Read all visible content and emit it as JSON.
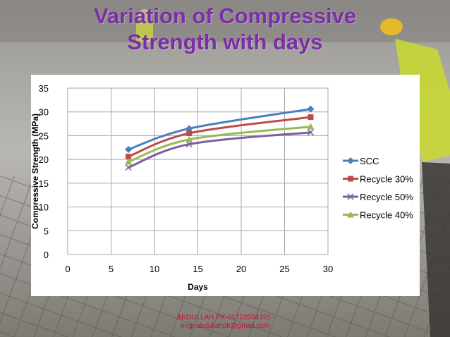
{
  "slide": {
    "title_line1": "Variation of Compressive",
    "title_line2": "Strength with days",
    "footer_line1": "ABDULLAH PK-01722094191-",
    "footer_line2": "engr.abdullahpk@gmail.com"
  },
  "colors": {
    "title": "#7b2fa6",
    "footer": "#c8102e"
  },
  "chart_data": {
    "type": "line",
    "title": "",
    "xlabel": "Days",
    "ylabel": "Compressive Strength (MPa)",
    "xlim": [
      0,
      30
    ],
    "ylim": [
      0,
      35
    ],
    "xticks": [
      0,
      5,
      10,
      15,
      20,
      25,
      30
    ],
    "yticks": [
      0,
      5,
      10,
      15,
      20,
      25,
      30,
      35
    ],
    "grid": true,
    "legend_position": "right",
    "x": [
      7,
      14,
      28
    ],
    "series": [
      {
        "name": "SCC",
        "values": [
          22.1,
          26.5,
          30.6
        ],
        "color": "#4a7ebb",
        "marker": "diamond"
      },
      {
        "name": "Recycle 30%",
        "values": [
          20.6,
          25.5,
          28.9
        ],
        "color": "#be4b48",
        "marker": "square"
      },
      {
        "name": "Recycle 50%",
        "values": [
          18.3,
          23.2,
          25.7
        ],
        "color": "#7d5fa0",
        "marker": "x"
      },
      {
        "name": "Recycle 40%",
        "values": [
          19.5,
          24.2,
          26.9
        ],
        "color": "#98b954",
        "marker": "triangle"
      }
    ]
  }
}
